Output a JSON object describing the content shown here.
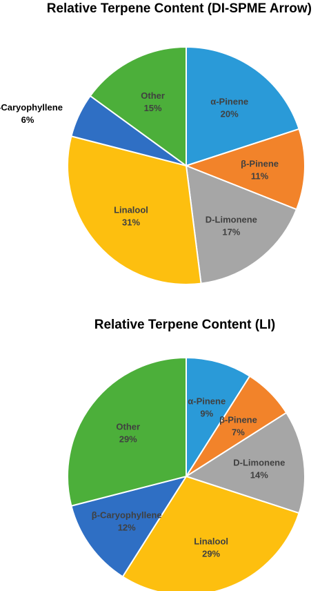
{
  "chart_data": [
    {
      "type": "pie",
      "title": "Relative Terpene Content (DI-SPME Arrow)",
      "slices": [
        {
          "label": "α-Pinene",
          "value": 20,
          "value_label": "20%",
          "color": "#2a9ad8"
        },
        {
          "label": "β-Pinene",
          "value": 11,
          "value_label": "11%",
          "color": "#f2832a"
        },
        {
          "label": "D-Limonene",
          "value": 17,
          "value_label": "17%",
          "color": "#a6a6a6"
        },
        {
          "label": "Linalool",
          "value": 31,
          "value_label": "31%",
          "color": "#fdbf0f"
        },
        {
          "label": "β-Caryophyllene",
          "value": 6,
          "value_label": "6%",
          "color": "#2f6fc4"
        },
        {
          "label": "Other",
          "value": 15,
          "value_label": "15%",
          "color": "#4caf3a"
        }
      ]
    },
    {
      "type": "pie",
      "title": "Relative Terpene Content (LI)",
      "slices": [
        {
          "label": "α-Pinene",
          "value": 9,
          "value_label": "9%",
          "color": "#2a9ad8"
        },
        {
          "label": "β-Pinene",
          "value": 7,
          "value_label": "7%",
          "color": "#f2832a"
        },
        {
          "label": "D-Limonene",
          "value": 14,
          "value_label": "14%",
          "color": "#a6a6a6"
        },
        {
          "label": "Linalool",
          "value": 29,
          "value_label": "29%",
          "color": "#fdbf0f"
        },
        {
          "label": "β-Caryophyllene",
          "value": 12,
          "value_label": "12%",
          "color": "#2f6fc4"
        },
        {
          "label": "Other",
          "value": 29,
          "value_label": "29%",
          "color": "#4caf3a"
        }
      ]
    }
  ]
}
